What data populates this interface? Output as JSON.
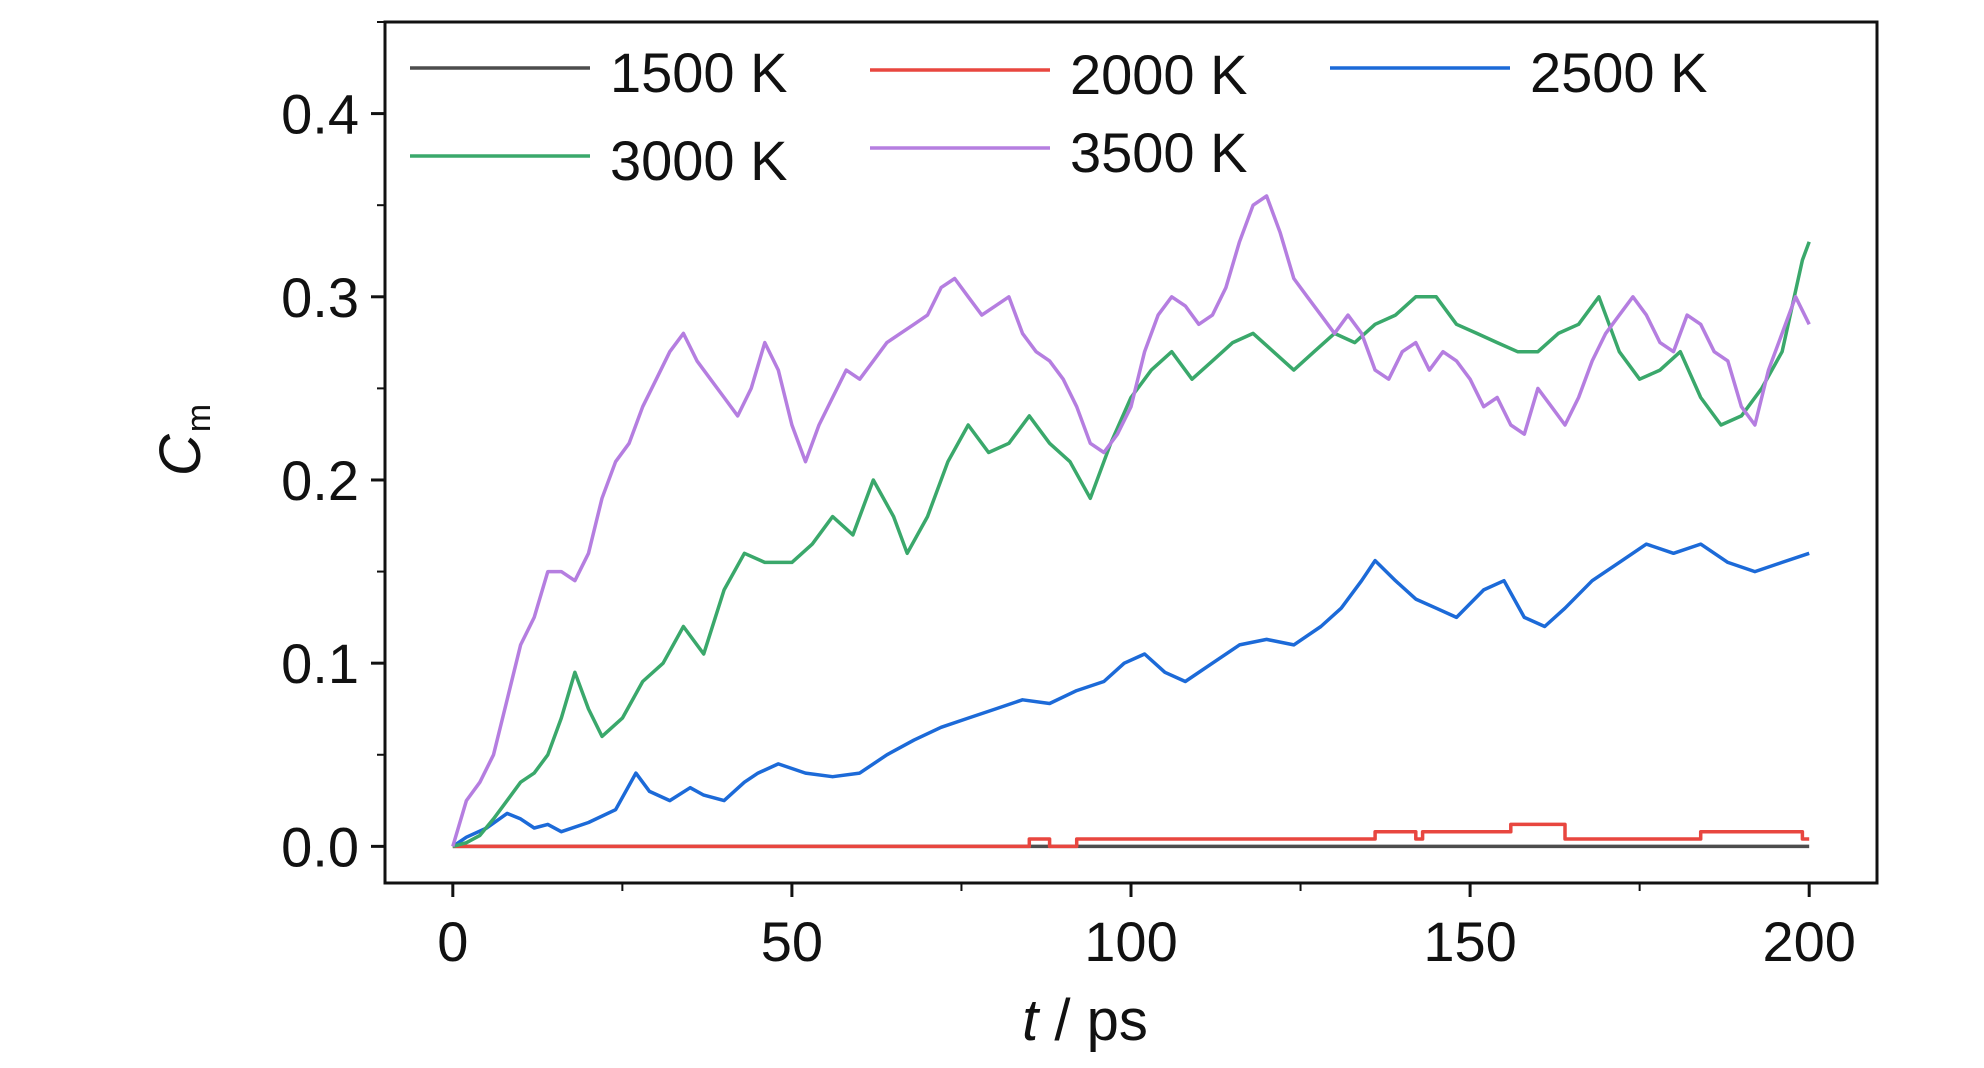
{
  "chart_data": {
    "type": "line",
    "title": "",
    "xlabel_italic": "t",
    "xlabel_rest": " / ps",
    "ylabel_main": "C",
    "ylabel_sub": "m",
    "xlim": [
      -10,
      210
    ],
    "ylim": [
      -0.02,
      0.45
    ],
    "xticks": [
      0,
      50,
      100,
      150,
      200
    ],
    "xtick_labels": [
      "0",
      "50",
      "100",
      "150",
      "200"
    ],
    "yticks": [
      0.0,
      0.1,
      0.2,
      0.3,
      0.4
    ],
    "ytick_labels": [
      "0.0",
      "0.1",
      "0.2",
      "0.3",
      "0.4"
    ],
    "grid": false,
    "legend_position": "top",
    "series": [
      {
        "name": "1500 K",
        "color": "#4d4d4d",
        "x": [
          0,
          200
        ],
        "y": [
          0.0,
          0.0
        ]
      },
      {
        "name": "2000 K",
        "color": "#e8463f",
        "x": [
          0,
          85,
          85,
          88,
          88,
          92,
          92,
          136,
          136,
          142,
          142,
          143,
          143,
          156,
          156,
          164,
          164,
          184,
          184,
          199,
          199,
          200
        ],
        "y": [
          0.0,
          0.0,
          0.004,
          0.004,
          0.0,
          0.0,
          0.004,
          0.004,
          0.008,
          0.008,
          0.004,
          0.004,
          0.008,
          0.008,
          0.012,
          0.012,
          0.004,
          0.004,
          0.008,
          0.008,
          0.004,
          0.004
        ]
      },
      {
        "name": "2500 K",
        "color": "#1c6ad8",
        "x": [
          0,
          2,
          5,
          8,
          10,
          12,
          14,
          16,
          20,
          24,
          27,
          29,
          32,
          35,
          37,
          40,
          43,
          45,
          48,
          52,
          56,
          60,
          64,
          68,
          72,
          76,
          80,
          84,
          88,
          92,
          96,
          99,
          102,
          105,
          108,
          112,
          116,
          120,
          124,
          128,
          131,
          134,
          136,
          139,
          142,
          145,
          148,
          152,
          155,
          158,
          161,
          164,
          168,
          172,
          176,
          180,
          184,
          188,
          192,
          196,
          200
        ],
        "y": [
          0.0,
          0.005,
          0.01,
          0.018,
          0.015,
          0.01,
          0.012,
          0.008,
          0.013,
          0.02,
          0.04,
          0.03,
          0.025,
          0.032,
          0.028,
          0.025,
          0.035,
          0.04,
          0.045,
          0.04,
          0.038,
          0.04,
          0.05,
          0.058,
          0.065,
          0.07,
          0.075,
          0.08,
          0.078,
          0.085,
          0.09,
          0.1,
          0.105,
          0.095,
          0.09,
          0.1,
          0.11,
          0.113,
          0.11,
          0.12,
          0.13,
          0.145,
          0.156,
          0.145,
          0.135,
          0.13,
          0.125,
          0.14,
          0.145,
          0.125,
          0.12,
          0.13,
          0.145,
          0.155,
          0.165,
          0.16,
          0.165,
          0.155,
          0.15,
          0.155,
          0.16
        ]
      },
      {
        "name": "3000 K",
        "color": "#3aa86b",
        "x": [
          0,
          2,
          4,
          6,
          8,
          10,
          12,
          14,
          16,
          18,
          20,
          22,
          25,
          28,
          31,
          34,
          37,
          40,
          43,
          46,
          50,
          53,
          56,
          59,
          62,
          65,
          67,
          70,
          73,
          76,
          79,
          82,
          85,
          88,
          91,
          94,
          97,
          100,
          103,
          106,
          109,
          112,
          115,
          118,
          121,
          124,
          127,
          130,
          133,
          136,
          139,
          142,
          145,
          148,
          151,
          154,
          157,
          160,
          163,
          166,
          169,
          172,
          175,
          178,
          181,
          184,
          187,
          190,
          193,
          196,
          199,
          200
        ],
        "y": [
          0.0,
          0.002,
          0.006,
          0.015,
          0.025,
          0.035,
          0.04,
          0.05,
          0.07,
          0.095,
          0.075,
          0.06,
          0.07,
          0.09,
          0.1,
          0.12,
          0.105,
          0.14,
          0.16,
          0.155,
          0.155,
          0.165,
          0.18,
          0.17,
          0.2,
          0.18,
          0.16,
          0.18,
          0.21,
          0.23,
          0.215,
          0.22,
          0.235,
          0.22,
          0.21,
          0.19,
          0.22,
          0.245,
          0.26,
          0.27,
          0.255,
          0.265,
          0.275,
          0.28,
          0.27,
          0.26,
          0.27,
          0.28,
          0.275,
          0.285,
          0.29,
          0.3,
          0.3,
          0.285,
          0.28,
          0.275,
          0.27,
          0.27,
          0.28,
          0.285,
          0.3,
          0.27,
          0.255,
          0.26,
          0.27,
          0.245,
          0.23,
          0.235,
          0.25,
          0.27,
          0.32,
          0.33
        ]
      },
      {
        "name": "3500 K",
        "color": "#b57ee0",
        "x": [
          0,
          2,
          4,
          6,
          8,
          10,
          12,
          14,
          16,
          18,
          20,
          22,
          24,
          26,
          28,
          30,
          32,
          34,
          36,
          38,
          40,
          42,
          44,
          46,
          48,
          50,
          52,
          54,
          56,
          58,
          60,
          62,
          64,
          66,
          68,
          70,
          72,
          74,
          76,
          78,
          80,
          82,
          84,
          86,
          88,
          90,
          92,
          94,
          96,
          98,
          100,
          102,
          104,
          106,
          108,
          110,
          112,
          114,
          116,
          118,
          120,
          122,
          124,
          126,
          128,
          130,
          132,
          134,
          136,
          138,
          140,
          142,
          144,
          146,
          148,
          150,
          152,
          154,
          156,
          158,
          160,
          162,
          164,
          166,
          168,
          170,
          172,
          174,
          176,
          178,
          180,
          182,
          184,
          186,
          188,
          190,
          192,
          194,
          196,
          198,
          200
        ],
        "y": [
          0.0,
          0.025,
          0.035,
          0.05,
          0.08,
          0.11,
          0.125,
          0.15,
          0.15,
          0.145,
          0.16,
          0.19,
          0.21,
          0.22,
          0.24,
          0.255,
          0.27,
          0.28,
          0.265,
          0.255,
          0.245,
          0.235,
          0.25,
          0.275,
          0.26,
          0.23,
          0.21,
          0.23,
          0.245,
          0.26,
          0.255,
          0.265,
          0.275,
          0.28,
          0.285,
          0.29,
          0.305,
          0.31,
          0.3,
          0.29,
          0.295,
          0.3,
          0.28,
          0.27,
          0.265,
          0.255,
          0.24,
          0.22,
          0.215,
          0.225,
          0.24,
          0.27,
          0.29,
          0.3,
          0.295,
          0.285,
          0.29,
          0.305,
          0.33,
          0.35,
          0.355,
          0.335,
          0.31,
          0.3,
          0.29,
          0.28,
          0.29,
          0.28,
          0.26,
          0.255,
          0.27,
          0.275,
          0.26,
          0.27,
          0.265,
          0.255,
          0.24,
          0.245,
          0.23,
          0.225,
          0.25,
          0.24,
          0.23,
          0.245,
          0.265,
          0.28,
          0.29,
          0.3,
          0.29,
          0.275,
          0.27,
          0.29,
          0.285,
          0.27,
          0.265,
          0.24,
          0.23,
          0.26,
          0.28,
          0.3,
          0.285
        ]
      }
    ]
  }
}
